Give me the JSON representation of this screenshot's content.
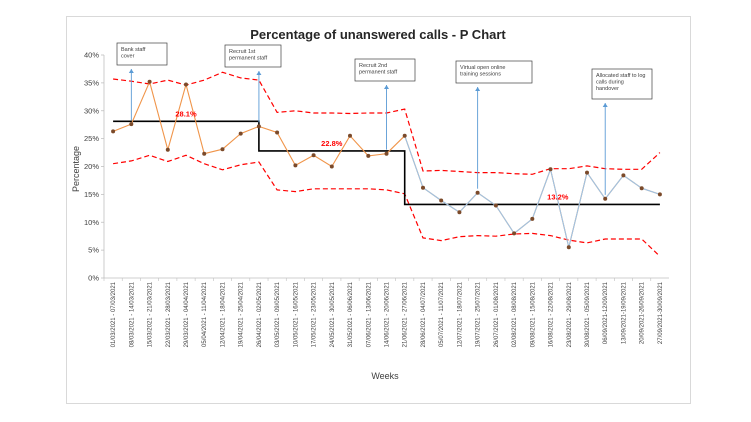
{
  "chart_data": {
    "type": "line",
    "title": "Percentage of unanswered calls - P Chart",
    "xlabel": "Weeks",
    "ylabel": "Percentage",
    "ylim": [
      0,
      40
    ],
    "yticks": [
      "0%",
      "5%",
      "10%",
      "15%",
      "20%",
      "25%",
      "30%",
      "35%",
      "40%"
    ],
    "grid": false,
    "categories": [
      "01/03/2021 - 07/03/2021",
      "08/03/2021 - 14/03/2021",
      "15/03/2021 - 21/03/2021",
      "22/03/2021 - 28/03/2021",
      "29/03/2021 - 04/04/2021",
      "05/04/2021 - 11/04/2021",
      "12/04/2021 - 18/04/2021",
      "19/04/2021 - 25/04/2021",
      "26/04/2021 - 02/05/2021",
      "03/05/2021 - 09/05/2021",
      "10/05/2021 - 16/05/2021",
      "17/05/2021 - 23/05/2021",
      "24/05/2021 - 30/05/2021",
      "31/05/2021 - 06/06/2021",
      "07/06/2021 - 13/06/2021",
      "14/06/2021 - 20/06/2021",
      "21/06/2021 - 27/06/2021",
      "28/06/2021 - 04/07/2021",
      "05/07/2021 - 11/07/2021",
      "12/07/2021 - 18/07/2021",
      "19/07/2021 - 25/07/2021",
      "26/07/2021 - 01/08/2021",
      "02/08/2021 - 08/08/2021",
      "09/08/2021 - 15/08/2021",
      "16/08/2021 - 22/08/2021",
      "23/08/2021 - 29/08/2021",
      "30/08/2021 - 05/09/2021",
      "06/09/2021-12/09/2021",
      "13/09/2021-19/09/2021",
      "20/09/2021-26/09/2021",
      "27/09/2021-30/09/2021"
    ],
    "series": [
      {
        "values": [
          26.3,
          27.6,
          35.2,
          23.0,
          34.7,
          22.3,
          23.1,
          25.9,
          27.2,
          26.1,
          20.2,
          22.0,
          20.0,
          25.5,
          21.9,
          22.3,
          25.5,
          16.2,
          13.9,
          11.8,
          15.3,
          13.0,
          8.0,
          10.6,
          19.5,
          5.5,
          18.9,
          14.2,
          18.4,
          16.1,
          15.0
        ],
        "color": "#f0954a",
        "marker_color": "#7b4a2a"
      }
    ],
    "mean_line": {
      "color": "#000000",
      "segments": [
        {
          "from": 0,
          "to": 8,
          "value": 28.1
        },
        {
          "from": 8,
          "to": 16,
          "value": 22.8
        },
        {
          "from": 16,
          "to": 30,
          "value": 13.2
        }
      ]
    },
    "upper_control_limit": {
      "color": "#ff0000",
      "values": [
        35.7,
        35.3,
        34.8,
        35.5,
        34.6,
        35.5,
        36.9,
        35.9,
        35.5,
        29.7,
        30.0,
        29.6,
        29.6,
        29.5,
        29.6,
        29.6,
        30.3,
        19.2,
        19.3,
        19.1,
        18.9,
        18.9,
        18.7,
        18.6,
        19.6,
        19.6,
        20.1,
        19.6,
        19.5,
        19.5,
        22.5
      ]
    },
    "lower_control_limit": {
      "color": "#ff0000",
      "values": [
        20.5,
        21.0,
        22.0,
        20.9,
        22.0,
        20.5,
        19.4,
        20.3,
        20.8,
        15.8,
        15.5,
        16.0,
        16.0,
        16.0,
        16.0,
        15.8,
        15.1,
        7.2,
        6.7,
        7.4,
        7.6,
        7.5,
        7.9,
        8.0,
        7.6,
        6.8,
        6.3,
        7.0,
        7.0,
        7.0,
        3.9
      ]
    },
    "mean_labels": [
      "28.1%",
      "22.8%",
      "13.2%"
    ],
    "annotations": [
      {
        "lines": [
          "Bank staff",
          "cover"
        ],
        "index": 1
      },
      {
        "lines": [
          "Recruit 1st",
          "permanent staff"
        ],
        "index": 8
      },
      {
        "lines": [
          "Recruit 2nd",
          "permanent staff"
        ],
        "index": 15
      },
      {
        "lines": [
          "Virtual open online",
          "training sessions"
        ],
        "index": 20
      },
      {
        "lines": [
          "Allocated staff to log",
          "calls during",
          "handover"
        ],
        "index": 27
      }
    ]
  }
}
